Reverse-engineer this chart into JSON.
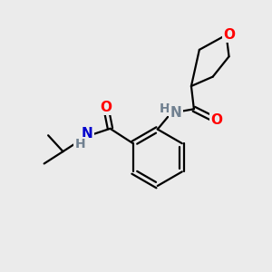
{
  "background_color": "#ebebeb",
  "atom_colors": {
    "C": "#000000",
    "N_blue": "#0000cd",
    "N_gray": "#708090",
    "O": "#ff0000",
    "H": "#708090"
  },
  "figsize": [
    3.0,
    3.0
  ],
  "dpi": 100,
  "bond_lw": 1.6,
  "font_size": 10
}
